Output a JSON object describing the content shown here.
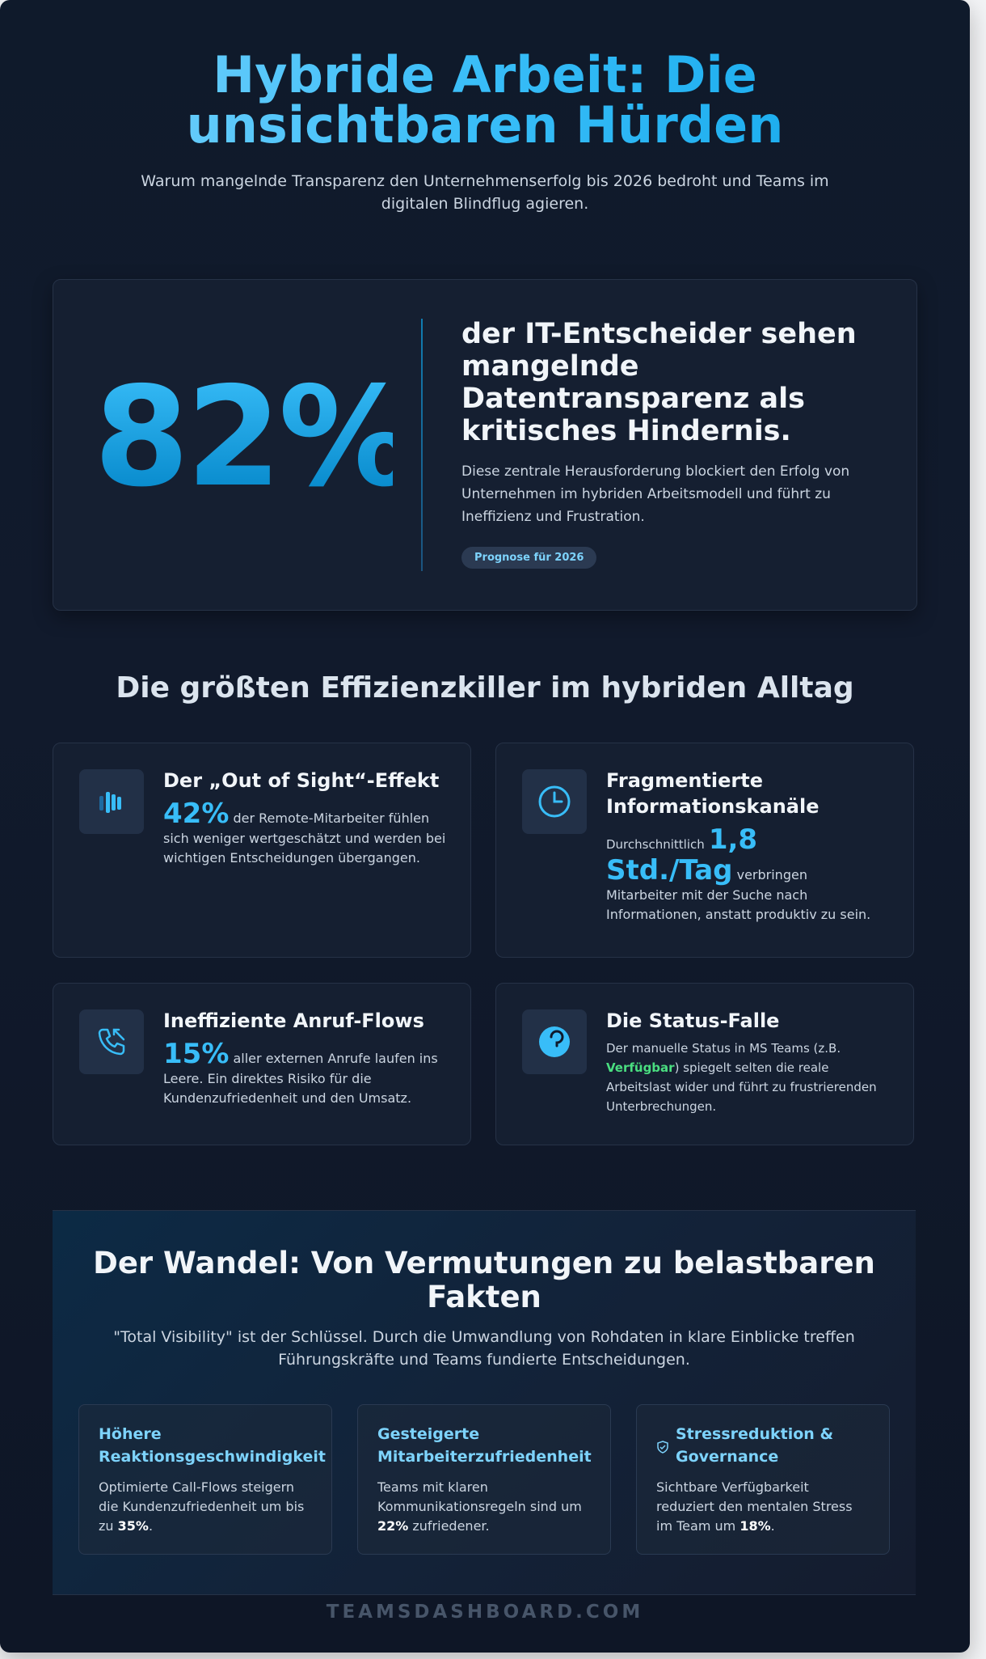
{
  "hero": {
    "title": "Hybride Arbeit: Die unsichtbaren Hürden",
    "subtitle": "Warum mangelnde Transparenz den Unternehmenserfolg bis 2026 bedroht und Teams im digitalen Blindflug agieren."
  },
  "stat": {
    "number": "82%",
    "headline": "der IT-Entscheider sehen mangelnde Datentransparenz als kritisches Hindernis.",
    "description": "Diese zentrale Herausforderung blockiert den Erfolg von Unternehmen im hybriden Arbeitsmodell und führt zu Ineffizienz und Frustration.",
    "badge": "Prognose für 2026"
  },
  "section_title": "Die größten Effizienzkiller im hybriden Alltag",
  "killers": [
    {
      "icon": "signal-bars-icon",
      "title": "Der „Out of Sight“-Effekt",
      "big": "42%",
      "text": "der Remote-Mitarbeiter fühlen sich weniger wertgeschätzt und werden bei wichtigen Entscheidungen übergangen."
    },
    {
      "icon": "clock-icon",
      "title": "Fragmentierte Informationskanäle",
      "pre": "Durchschnittlich",
      "big": "1,8 Std./Tag",
      "text": "verbringen Mitarbeiter mit der Suche nach Informationen, anstatt produktiv zu sein."
    },
    {
      "icon": "phone-missed-icon",
      "title": "Ineffiziente Anruf-Flows",
      "big": "15%",
      "text": "aller externen Anrufe laufen ins Leere. Ein direktes Risiko für die Kundenzufriedenheit und den Umsatz."
    },
    {
      "icon": "status-circle-icon",
      "title": "Die Status-Falle",
      "text_before": "Der manuelle Status in MS Teams (z.B.",
      "highlight": "Verfügbar",
      "text_after": ") spiegelt selten die reale Arbeitslast wider und führt zu frustrierenden Unterbrechungen."
    }
  ],
  "wandel": {
    "title": "Der Wandel: Von Vermutungen zu belastbaren Fakten",
    "subtitle": "\"Total Visibility\" ist der Schlüssel. Durch die Umwandlung von Rohdaten in klare Einblicke treffen Führungskräfte und Teams fundierte Entscheidungen.",
    "benefits": [
      {
        "title": "Höhere Reaktionsgeschwindigkeit",
        "text": "Optimierte Call-Flows steigern die Kundenzufriedenheit um bis zu",
        "value": "35%",
        "suffix": "."
      },
      {
        "title": "Gesteigerte Mitarbeiterzufriedenheit",
        "text": "Teams mit klaren Kommunikationsregeln sind um",
        "value": "22%",
        "suffix": " zufriedener."
      },
      {
        "icon": "shield-check-icon",
        "title": "Stressreduktion & Governance",
        "text": "Sichtbare Verfügbarkeit reduziert den mentalen Stress im Team um",
        "value": "18%",
        "suffix": "."
      }
    ]
  },
  "footer": "TEAMSDASHBOARD.COM",
  "colors": {
    "accent": "#38bdf8",
    "background": "#0f1a2b",
    "card": "#151f31",
    "highlight_green": "#4ade80"
  }
}
